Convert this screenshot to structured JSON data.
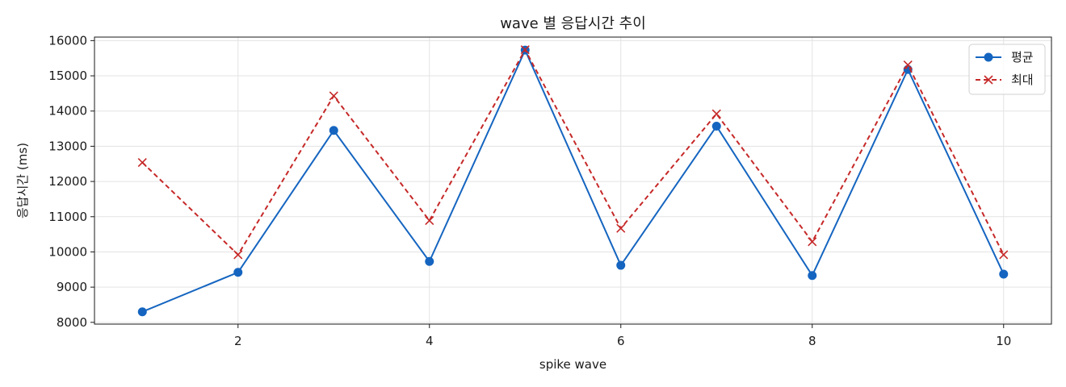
{
  "chart_data": {
    "type": "line",
    "title": "wave 별 응답시간 추이",
    "xlabel": "spike wave",
    "ylabel": "응답시간 (ms)",
    "x": [
      1,
      2,
      3,
      4,
      5,
      6,
      7,
      8,
      9,
      10
    ],
    "xlim": [
      0.5,
      10.5
    ],
    "ylim": [
      7950,
      16100
    ],
    "xticks": [
      2,
      4,
      6,
      8,
      10
    ],
    "yticks": [
      8000,
      9000,
      10000,
      11000,
      12000,
      13000,
      14000,
      15000,
      16000
    ],
    "grid": true,
    "legend_position": "top-right",
    "series": [
      {
        "name": "평균",
        "values": [
          8300,
          9420,
          13450,
          9730,
          15730,
          9620,
          13570,
          9330,
          15180,
          9370
        ],
        "color": "#1565c0",
        "line_style": "solid",
        "marker": "circle"
      },
      {
        "name": "최대",
        "values": [
          12540,
          9920,
          14430,
          10890,
          15740,
          10670,
          13920,
          10290,
          15310,
          9920
        ],
        "color": "#c62828",
        "line_style": "dashed",
        "marker": "x"
      }
    ]
  }
}
